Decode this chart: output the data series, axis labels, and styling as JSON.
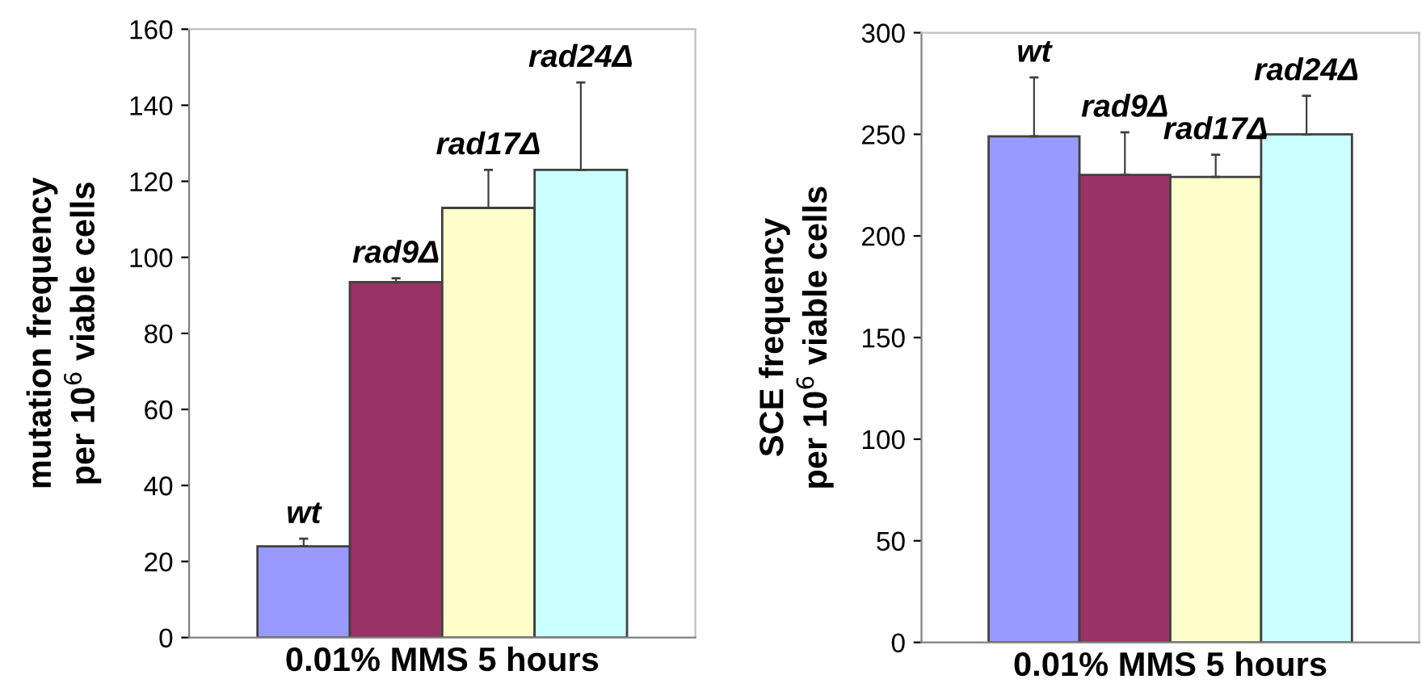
{
  "chart_data": [
    {
      "type": "bar",
      "xlabel": "0.01% MMS 5 hours",
      "ylabel": "mutation frequency\nper 10$^{6}$ viable cells",
      "categories": [
        "wt",
        "rad9Δ",
        "rad17Δ",
        "rad24Δ"
      ],
      "ylim": [
        0,
        160
      ],
      "yticks": [
        0,
        20,
        40,
        60,
        80,
        100,
        120,
        140,
        160
      ],
      "grid": false,
      "legend": false,
      "colors": [
        "#9999ff",
        "#993366",
        "#ffffcc",
        "#ccffff"
      ],
      "values": [
        24,
        93.5,
        113,
        123
      ],
      "errors": [
        [
          24,
          26
        ],
        [
          93.5,
          94.5
        ],
        [
          113,
          123
        ],
        [
          123,
          146
        ]
      ]
    },
    {
      "type": "bar",
      "xlabel": "0.01% MMS 5 hours",
      "ylabel": "SCE frequency\nper 10$^{6}$ viable cells",
      "categories": [
        "wt",
        "rad9Δ",
        "rad17Δ",
        "rad24Δ"
      ],
      "ylim": [
        0,
        300
      ],
      "yticks": [
        0,
        50,
        100,
        150,
        200,
        250,
        300
      ],
      "grid": false,
      "legend": false,
      "colors": [
        "#9999ff",
        "#993366",
        "#ffffcc",
        "#ccffff"
      ],
      "values": [
        249,
        230,
        229,
        250
      ],
      "errors": [
        [
          249,
          278
        ],
        [
          230,
          251
        ],
        [
          229,
          240
        ],
        [
          250,
          269
        ]
      ]
    }
  ]
}
